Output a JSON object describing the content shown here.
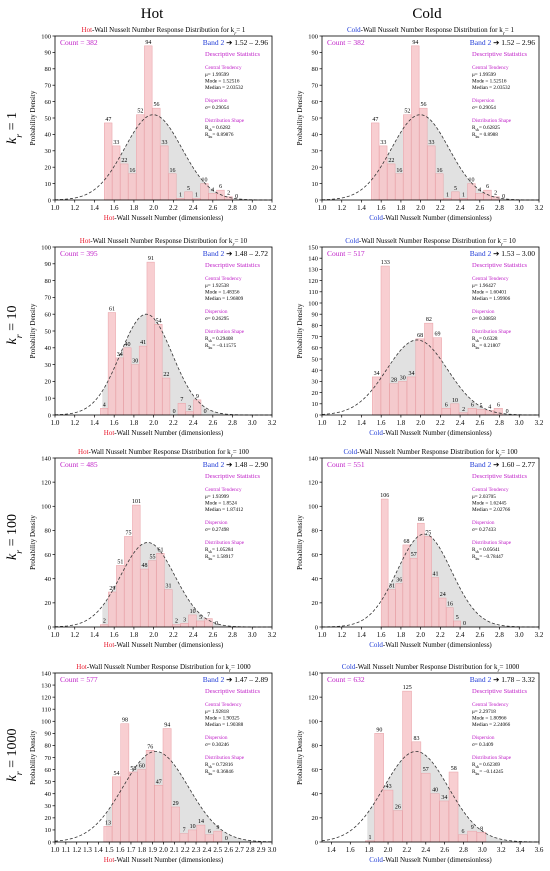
{
  "column_headers": [
    "Hot",
    "Cold"
  ],
  "row_labels": [
    "k_r = 1",
    "k_r = 10",
    "k_r = 100",
    "k_r = 1000"
  ],
  "colors": {
    "hot": "#e8192c",
    "cold": "#1f3bd6",
    "count": "#c021c8",
    "stats": "#c021c8",
    "bar_fill": "#f7c5c9",
    "bar_stroke": "#e8a0a6",
    "band_fill": "#dcdcdc",
    "curve": "#333333"
  },
  "chart_data": [
    {
      "type": "bar",
      "side": "Hot",
      "kr": "1",
      "title_prefix": "Hot",
      "title_rest": "-Wall Nusselt Number Response Distribution for k",
      "title_k": "r",
      "title_val": "= 1",
      "xlabel_prefix": "Hot",
      "xlabel_rest": "-Wall Nusselt Number (dimensionless)",
      "ylabel": "Probability Density",
      "xlim": [
        1.0,
        3.2
      ],
      "ylim": [
        0,
        100
      ],
      "xticks": [
        "1.0",
        "1.2",
        "1.4",
        "1.6",
        "1.8",
        "2.0",
        "2.2",
        "2.4",
        "2.6",
        "2.8",
        "3.0",
        "3.2"
      ],
      "yticks": [
        "0",
        "10",
        "20",
        "30",
        "40",
        "50",
        "60",
        "70",
        "80",
        "90",
        "100"
      ],
      "bin_start": 1.5,
      "bin_width": 0.0813,
      "values": [
        47,
        33,
        22,
        16,
        52,
        94,
        56,
        33,
        16,
        1,
        5,
        1,
        10,
        4,
        6,
        2,
        0
      ],
      "curve": {
        "mu": 1.99599,
        "sigma": 0.29054,
        "peak": 52
      },
      "band": [
        1.52,
        2.96
      ],
      "count": "Count = 382",
      "band_label": "Band 2",
      "band_text": "1.52 – 2.96",
      "stats": {
        "header": "Descriptive Statistics",
        "central": "Central Tendency",
        "mu": "μ= 1.99599",
        "mode": "Mode = 1.52516",
        "median": "Median = 2.03532",
        "dispersion": "Dispersion",
        "sigma": "σ= 0.29054",
        "shape": "Distribution Shape",
        "skew": "R_sk= 0.6282",
        "kurt": "R_ku= 0.89876"
      }
    },
    {
      "type": "bar",
      "side": "Cold",
      "kr": "1",
      "title_prefix": "Cold",
      "title_rest": "-Wall Nusselt Number Response Distribution for k",
      "title_k": "r",
      "title_val": "= 1",
      "xlabel_prefix": "Cold",
      "xlabel_rest": "-Wall Nusselt Number (dimensionless)",
      "ylabel": "Probability Density",
      "xlim": [
        1.0,
        3.2
      ],
      "ylim": [
        0,
        100
      ],
      "xticks": [
        "1.0",
        "1.2",
        "1.4",
        "1.6",
        "1.8",
        "2.0",
        "2.2",
        "2.4",
        "2.6",
        "2.8",
        "3.0",
        "3.2"
      ],
      "yticks": [
        "0",
        "10",
        "20",
        "30",
        "40",
        "50",
        "60",
        "70",
        "80",
        "90",
        "100"
      ],
      "bin_start": 1.5,
      "bin_width": 0.0813,
      "values": [
        47,
        33,
        22,
        16,
        52,
        94,
        56,
        33,
        16,
        1,
        5,
        1,
        10,
        4,
        6,
        2,
        0
      ],
      "curve": {
        "mu": 1.99599,
        "sigma": 0.29054,
        "peak": 52
      },
      "band": [
        1.52,
        2.96
      ],
      "count": "Count = 382",
      "band_label": "Band 2",
      "band_text": "1.52 – 2.96",
      "stats": {
        "header": "Descriptive Statistics",
        "central": "Central Tendency",
        "mu": "μ= 1.99599",
        "mode": "Mode = 1.52516",
        "median": "Median = 2.03532",
        "dispersion": "Dispersion",
        "sigma": "σ= 0.29054",
        "shape": "Distribution Shape",
        "skew": "R_sk= 0.62825",
        "kurt": "R_ku= 0.8988"
      }
    },
    {
      "type": "bar",
      "side": "Hot",
      "kr": "10",
      "title_prefix": "Hot",
      "title_rest": "-Wall Nusselt Number Response Distribution for k",
      "title_k": "r",
      "title_val": "= 10",
      "xlabel_prefix": "Hot",
      "xlabel_rest": "-Wall Nusselt Number (dimensionless)",
      "ylabel": "Probability Density",
      "xlim": [
        1.0,
        3.2
      ],
      "ylim": [
        0,
        100
      ],
      "xticks": [
        "1.0",
        "1.2",
        "1.4",
        "1.6",
        "1.8",
        "2.0",
        "2.2",
        "2.4",
        "2.6",
        "2.8",
        "3.0",
        "3.2"
      ],
      "yticks": [
        "0",
        "10",
        "20",
        "30",
        "40",
        "50",
        "60",
        "70",
        "80",
        "90",
        "100"
      ],
      "bin_start": 1.46,
      "bin_width": 0.0787,
      "values": [
        4,
        61,
        34,
        40,
        30,
        41,
        91,
        54,
        22,
        0,
        7,
        2,
        9,
        0
      ],
      "curve": {
        "mu": 1.92538,
        "sigma": 0.26295,
        "peak": 60
      },
      "band": [
        1.48,
        2.72
      ],
      "count": "Count = 395",
      "band_label": "Band 2",
      "band_text": "1.48 – 2.72",
      "stats": {
        "header": "Descriptive Statistics",
        "central": "Central Tendency",
        "mu": "μ= 1.92538",
        "mode": "Mode = 1.48356",
        "median": "Median = 1.96809",
        "dispersion": "Dispersion",
        "sigma": "σ= 0.26295",
        "shape": "Distribution Shape",
        "skew": "R_sk= 0.29408",
        "kurt": "R_ku= −0.11575"
      }
    },
    {
      "type": "bar",
      "side": "Cold",
      "kr": "10",
      "title_prefix": "Cold",
      "title_rest": "-Wall Nusselt Number Response Distribution for k",
      "title_k": "r",
      "title_val": "= 10",
      "xlabel_prefix": "Cold",
      "xlabel_rest": "-Wall Nusselt Number (dimensionless)",
      "ylabel": "Probability Density",
      "xlim": [
        1.0,
        3.2
      ],
      "ylim": [
        0,
        150
      ],
      "xticks": [
        "1.0",
        "1.2",
        "1.4",
        "1.6",
        "1.8",
        "2.0",
        "2.2",
        "2.4",
        "2.6",
        "2.8",
        "3.0",
        "3.2"
      ],
      "yticks": [
        "0",
        "10",
        "20",
        "30",
        "40",
        "50",
        "60",
        "70",
        "80",
        "90",
        "100",
        "110",
        "120",
        "130",
        "140",
        "150"
      ],
      "bin_start": 1.51,
      "bin_width": 0.0882,
      "values": [
        34,
        133,
        28,
        30,
        34,
        68,
        82,
        69,
        6,
        10,
        2,
        6,
        5,
        4,
        6,
        0
      ],
      "curve": {
        "mu": 1.96427,
        "sigma": 0.30858,
        "peak": 67
      },
      "band": [
        1.53,
        3.0
      ],
      "count": "Count = 517",
      "band_label": "Band 2",
      "band_text": "1.53 – 3.00",
      "stats": {
        "header": "Descriptive Statistics",
        "central": "Central Tendency",
        "mu": "μ= 1.96427",
        "mode": "Mode = 1.60401",
        "median": "Median = 1.99906",
        "dispersion": "Dispersion",
        "sigma": "σ= 0.30858",
        "shape": "Distribution Shape",
        "skew": "R_sk= 0.6328",
        "kurt": "R_ku= 0.21807"
      }
    },
    {
      "type": "bar",
      "side": "Hot",
      "kr": "100",
      "title_prefix": "Hot",
      "title_rest": "-Wall Nusselt Number Response Distribution for k",
      "title_k": "r",
      "title_val": "= 100",
      "xlabel_prefix": "Hot",
      "xlabel_rest": "-Wall Nusselt Number (dimensionless)",
      "ylabel": "Probability Density",
      "xlim": [
        1.0,
        3.2
      ],
      "ylim": [
        0,
        140
      ],
      "xticks": [
        "1.0",
        "1.2",
        "1.4",
        "1.6",
        "1.8",
        "2.0",
        "2.2",
        "2.4",
        "2.6",
        "2.8",
        "3.0",
        "3.2"
      ],
      "yticks": [
        "0",
        "20",
        "40",
        "60",
        "80",
        "100",
        "120",
        "140"
      ],
      "bin_start": 1.46,
      "bin_width": 0.0813,
      "values": [
        2,
        29,
        51,
        75,
        101,
        48,
        55,
        61,
        31,
        2,
        3,
        10,
        5,
        7,
        0
      ],
      "curve": {
        "mu": 1.93999,
        "sigma": 0.27498,
        "peak": 70
      },
      "band": [
        1.48,
        2.9
      ],
      "count": "Count = 485",
      "band_label": "Band 2",
      "band_text": "1.48 – 2.90",
      "stats": {
        "header": "Descriptive Statistics",
        "central": "Central Tendency",
        "mu": "μ= 1.93999",
        "mode": "Mode = 1.8524",
        "median": "Median = 1.87412",
        "dispersion": "Dispersion",
        "sigma": "σ= 0.27498",
        "shape": "Distribution Shape",
        "skew": "R_sk= 1.05284",
        "kurt": "R_ku= 1.58917"
      }
    },
    {
      "type": "bar",
      "side": "Cold",
      "kr": "100",
      "title_prefix": "Cold",
      "title_rest": "-Wall Nusselt Number Response Distribution for k",
      "title_k": "r",
      "title_val": "= 100",
      "xlabel_prefix": "Cold",
      "xlabel_rest": "-Wall Nusselt Number (dimensionless)",
      "ylabel": "Probability Density",
      "xlim": [
        1.0,
        3.2
      ],
      "ylim": [
        0,
        140
      ],
      "xticks": [
        "1.0",
        "1.2",
        "1.4",
        "1.6",
        "1.8",
        "2.0",
        "2.2",
        "2.4",
        "2.6",
        "2.8",
        "3.0",
        "3.2"
      ],
      "yticks": [
        "0",
        "20",
        "40",
        "60",
        "80",
        "100",
        "120",
        "140"
      ],
      "bin_start": 1.6,
      "bin_width": 0.0734,
      "values": [
        106,
        31,
        36,
        68,
        57,
        86,
        75,
        41,
        24,
        16,
        5,
        0
      ],
      "curve": {
        "mu": 2.03705,
        "sigma": 0.27433,
        "peak": 77
      },
      "band": [
        1.6,
        2.77
      ],
      "count": "Count = 551",
      "band_label": "Band 2",
      "band_text": "1.60 – 2.77",
      "stats": {
        "header": "Descriptive Statistics",
        "central": "Central Tendency",
        "mu": "μ= 2.03705",
        "mode": "Mode = 1.62445",
        "median": "Median = 2.02766",
        "dispersion": "Dispersion",
        "sigma": "σ= 0.27433",
        "shape": "Distribution Shape",
        "skew": "R_sk= 0.05641",
        "kurt": "R_ku= −0.78447"
      }
    },
    {
      "type": "bar",
      "side": "Hot",
      "kr": "1000",
      "title_prefix": "Hot",
      "title_rest": "-Wall Nusselt Number Response Distribution for k",
      "title_k": "r",
      "title_val": "= 1000",
      "xlabel_prefix": "Hot",
      "xlabel_rest": "-Wall Nusselt Number (dimensionless)",
      "ylabel": "Probability Density",
      "xlim": [
        1.0,
        3.0
      ],
      "ylim": [
        0,
        140
      ],
      "xticks": [
        "1.0",
        "1.1",
        "1.2",
        "1.3",
        "1.4",
        "1.5",
        "1.6",
        "1.7",
        "1.8",
        "1.9",
        "2.0",
        "2.1",
        "2.2",
        "2.3",
        "2.4",
        "2.5",
        "2.6",
        "2.7",
        "2.8",
        "2.9",
        "3.0"
      ],
      "yticks": [
        "0",
        "10",
        "20",
        "30",
        "40",
        "50",
        "60",
        "70",
        "80",
        "90",
        "100",
        "110",
        "120",
        "130",
        "140"
      ],
      "bin_start": 1.45,
      "bin_width": 0.0779,
      "values": [
        13,
        54,
        98,
        58,
        60,
        76,
        47,
        94,
        29,
        7,
        10,
        14,
        6,
        9,
        0
      ],
      "curve": {
        "mu": 1.92818,
        "sigma": 0.30246,
        "peak": 75
      },
      "band": [
        1.47,
        2.89
      ],
      "count": "Count = 577",
      "band_label": "Band 2",
      "band_text": "1.47 – 2.89",
      "stats": {
        "header": "Descriptive Statistics",
        "central": "Central Tendency",
        "mu": "μ= 1.92818",
        "mode": "Mode = 1.90325",
        "median": "Median = 1.90388",
        "dispersion": "Dispersion",
        "sigma": "σ= 0.30246",
        "shape": "Distribution Shape",
        "skew": "R_sk= 0.72816",
        "kurt": "R_ku= 0.36846"
      }
    },
    {
      "type": "bar",
      "side": "Cold",
      "kr": "1000",
      "title_prefix": "Cold",
      "title_rest": "-Wall Nusselt Number Response Distribution for k",
      "title_k": "r",
      "title_val": "= 1000",
      "xlabel_prefix": "Cold",
      "xlabel_rest": "-Wall Nusselt Number (dimensionless)",
      "ylabel": "Probability Density",
      "xlim": [
        1.3,
        3.6
      ],
      "ylim": [
        0,
        140
      ],
      "xticks": [
        "1.4",
        "1.6",
        "1.8",
        "2.0",
        "2.2",
        "2.4",
        "2.6",
        "2.8",
        "3.0",
        "3.2",
        "3.4",
        "3.6"
      ],
      "yticks": [
        "0",
        "20",
        "40",
        "60",
        "80",
        "100",
        "120",
        "140"
      ],
      "bin_start": 1.76,
      "bin_width": 0.0985,
      "values": [
        1,
        90,
        43,
        26,
        125,
        83,
        57,
        40,
        34,
        58,
        6,
        9,
        8
      ],
      "curve": {
        "mu": 2.29718,
        "sigma": 0.3409,
        "peak": 75
      },
      "band": [
        1.78,
        3.32
      ],
      "count": "Count = 632",
      "band_label": "Band 2",
      "band_text": "1.78 – 3.32",
      "stats": {
        "header": "Descriptive Statistics",
        "central": "Central Tendency",
        "mu": "μ= 2.29718",
        "mode": "Mode = 1.80966",
        "median": "Median = 2.24066",
        "dispersion": "Dispersion",
        "sigma": "σ= 0.3409",
        "shape": "Distribution Shape",
        "skew": "R_sk= 0.62369",
        "kurt": "R_ku= −0.14245"
      }
    }
  ]
}
